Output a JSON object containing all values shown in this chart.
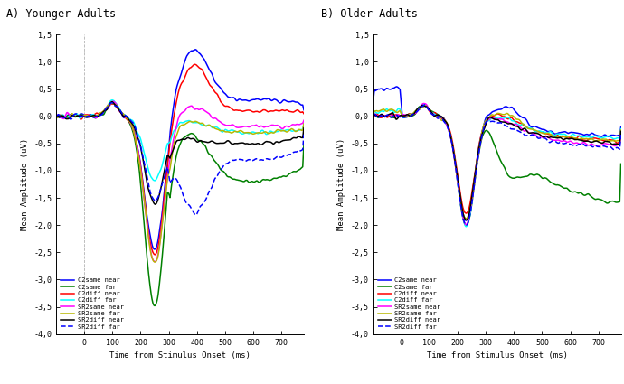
{
  "title_left": "A) Younger Adults",
  "title_right": "B) Older Adults",
  "xlabel": "Time from Stimulus Onset (ms)",
  "ylabel_left": "Mean Amplitude (uV)",
  "ylabel_right": "Mean Amplitude (uV)",
  "xlim": [
    -100,
    780
  ],
  "ylim": [
    -4.0,
    1.5
  ],
  "yticks": [
    1.5,
    1.0,
    0.5,
    0.0,
    -0.5,
    -1.0,
    -1.5,
    -2.0,
    -2.5,
    -3.0,
    -3.5,
    -4.0
  ],
  "xticks": [
    0,
    100,
    200,
    300,
    400,
    500,
    600,
    700
  ],
  "legend_labels": [
    "C2same near",
    "C2same far",
    "C2diff near",
    "C2diff far",
    "SR2same near",
    "SR2same far",
    "SR2diff near",
    "SR2diff far"
  ],
  "colors": [
    "blue",
    "green",
    "red",
    "cyan",
    "magenta",
    "#b8b800",
    "black",
    "blue"
  ],
  "styles": [
    "-",
    "-",
    "-",
    "-",
    "-",
    "-",
    "-",
    "--"
  ],
  "bg_color": "white"
}
